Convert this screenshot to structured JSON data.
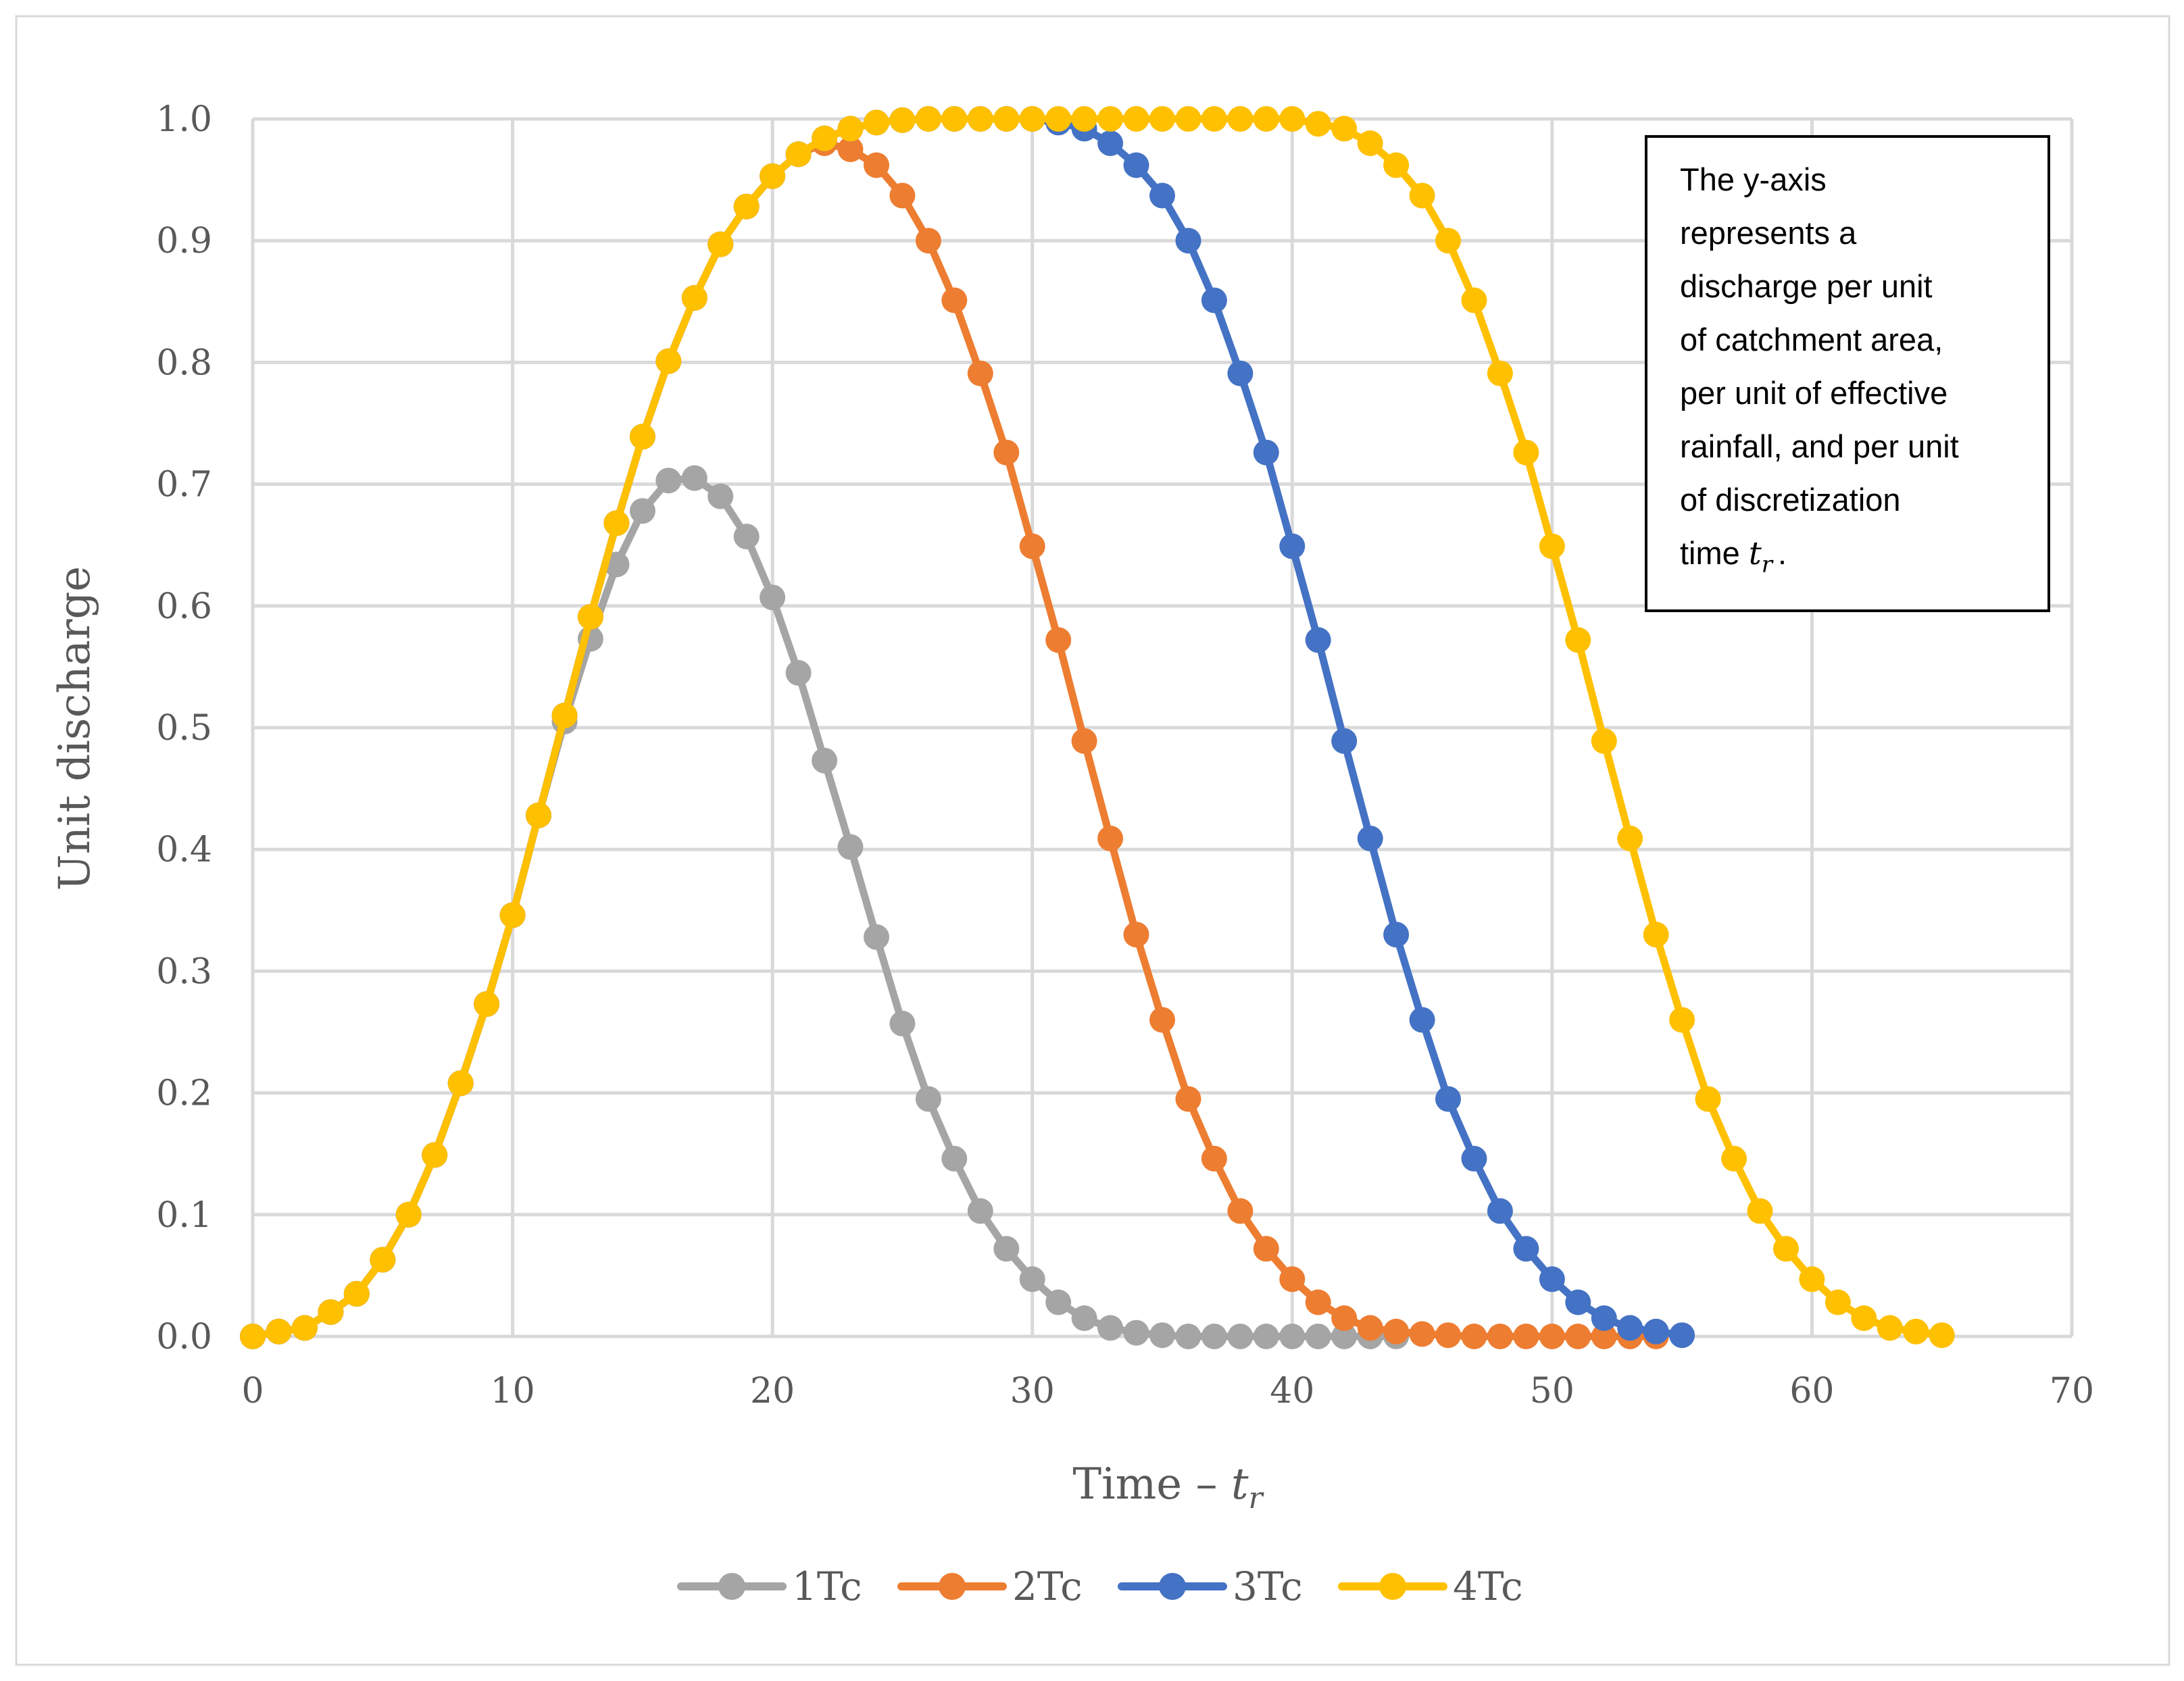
{
  "chart_data": {
    "type": "line",
    "xlabel": "Time – ",
    "xlabel_math": "t",
    "xlabel_sub": "r",
    "ylabel": "Unit discharge",
    "xlim": [
      0,
      70
    ],
    "ylim": [
      0,
      1
    ],
    "x_ticks": [
      "0",
      "10",
      "20",
      "30",
      "40",
      "50",
      "60",
      "70"
    ],
    "y_ticks": [
      "0.0",
      "0.1",
      "0.2",
      "0.3",
      "0.4",
      "0.5",
      "0.6",
      "0.7",
      "0.8",
      "0.9",
      "1.0"
    ],
    "grid": true,
    "legend_position": "bottom",
    "annotation": {
      "lines": [
        "The y-axis",
        "represents a",
        "discharge per unit",
        "of catchment area,",
        "per unit of effective",
        "rainfall, and per unit",
        "of discretization",
        "time "
      ],
      "math": "t",
      "math_sub": "r",
      "tail": "."
    },
    "series": [
      {
        "name": "1Tc",
        "color": "#a5a5a5",
        "values": [
          0.0,
          0.004,
          0.007,
          0.02,
          0.035,
          0.063,
          0.1,
          0.149,
          0.208,
          0.273,
          0.346,
          0.428,
          0.505,
          0.573,
          0.634,
          0.678,
          0.703,
          0.705,
          0.69,
          0.657,
          0.607,
          0.545,
          0.473,
          0.402,
          0.328,
          0.257,
          0.195,
          0.146,
          0.103,
          0.072,
          0.047,
          0.028,
          0.015,
          0.007,
          0.003,
          0.001,
          0.0,
          0.0,
          0.0,
          0.0,
          0.0,
          0.0,
          0.0,
          0.0,
          0.0
        ]
      },
      {
        "name": "2Tc",
        "color": "#ed7d31",
        "values": [
          0.0,
          0.004,
          0.007,
          0.02,
          0.035,
          0.063,
          0.1,
          0.149,
          0.208,
          0.273,
          0.346,
          0.428,
          0.51,
          0.591,
          0.668,
          0.739,
          0.801,
          0.853,
          0.897,
          0.928,
          0.953,
          0.971,
          0.98,
          0.975,
          0.962,
          0.937,
          0.9,
          0.851,
          0.791,
          0.726,
          0.649,
          0.572,
          0.489,
          0.409,
          0.33,
          0.26,
          0.195,
          0.146,
          0.103,
          0.072,
          0.047,
          0.028,
          0.015,
          0.007,
          0.004,
          0.002,
          0.001,
          0.0,
          0.0,
          0.0,
          0.0,
          0.0,
          0.0,
          0.0,
          0.0
        ]
      },
      {
        "name": "3Tc",
        "color": "#4472c4",
        "values": [
          0.0,
          0.004,
          0.007,
          0.02,
          0.035,
          0.063,
          0.1,
          0.149,
          0.208,
          0.273,
          0.346,
          0.428,
          0.51,
          0.591,
          0.668,
          0.739,
          0.801,
          0.853,
          0.897,
          0.928,
          0.953,
          0.971,
          0.984,
          0.992,
          0.997,
          0.999,
          1.0,
          1.0,
          1.0,
          1.0,
          1.0,
          0.997,
          0.992,
          0.98,
          0.962,
          0.937,
          0.9,
          0.851,
          0.791,
          0.726,
          0.649,
          0.572,
          0.489,
          0.409,
          0.33,
          0.26,
          0.195,
          0.146,
          0.103,
          0.072,
          0.047,
          0.028,
          0.015,
          0.007,
          0.004,
          0.001
        ]
      },
      {
        "name": "4Tc",
        "color": "#ffc000",
        "values": [
          0.0,
          0.004,
          0.007,
          0.02,
          0.035,
          0.063,
          0.1,
          0.149,
          0.208,
          0.273,
          0.346,
          0.428,
          0.51,
          0.591,
          0.668,
          0.739,
          0.801,
          0.853,
          0.897,
          0.928,
          0.953,
          0.971,
          0.984,
          0.992,
          0.997,
          0.999,
          1.0,
          1.0,
          1.0,
          1.0,
          1.0,
          1.0,
          1.0,
          1.0,
          1.0,
          1.0,
          1.0,
          1.0,
          1.0,
          1.0,
          1.0,
          0.996,
          0.992,
          0.98,
          0.962,
          0.937,
          0.9,
          0.851,
          0.791,
          0.726,
          0.649,
          0.572,
          0.489,
          0.409,
          0.33,
          0.26,
          0.195,
          0.146,
          0.103,
          0.072,
          0.047,
          0.028,
          0.015,
          0.007,
          0.004,
          0.001
        ]
      }
    ]
  }
}
